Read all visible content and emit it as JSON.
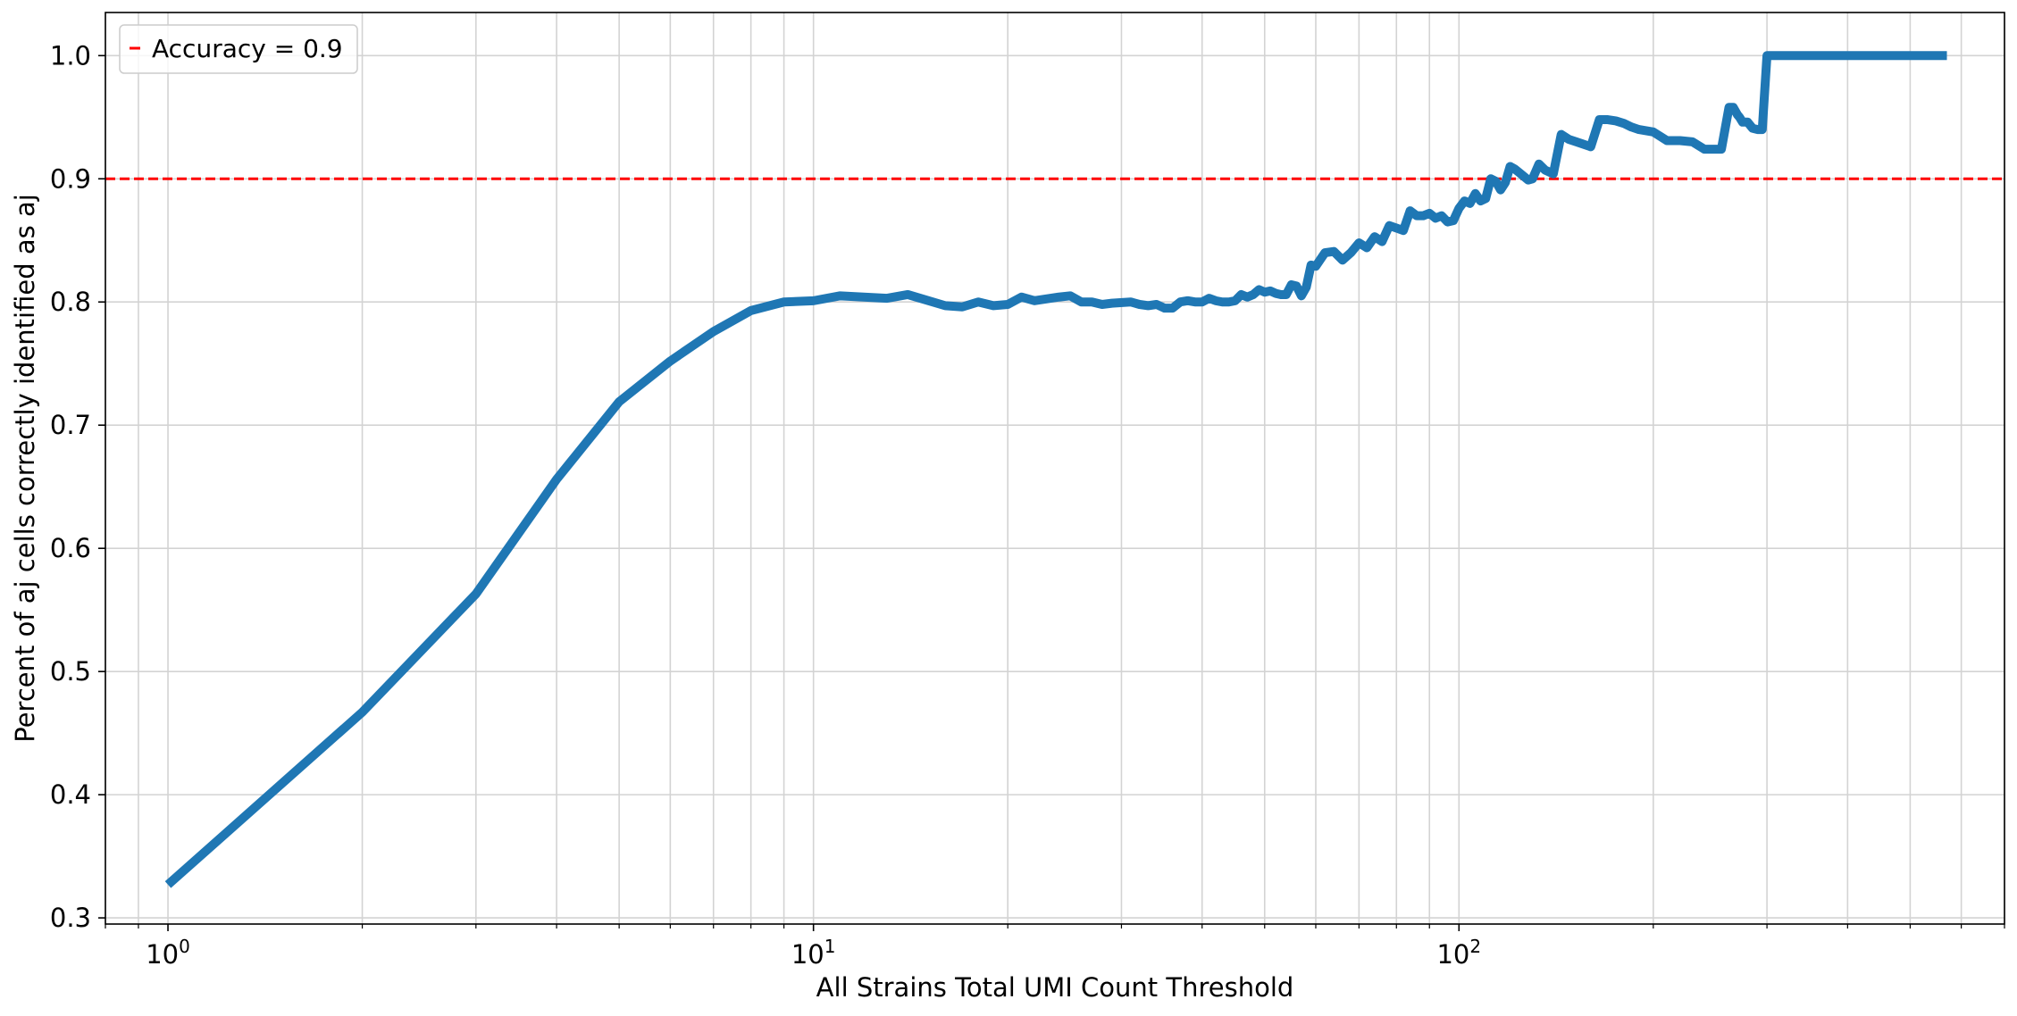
{
  "chart_data": {
    "type": "line",
    "title": "",
    "xlabel": "All Strains Total UMI Count Threshold",
    "ylabel": "Percent of aj cells correctly identified as aj",
    "xscale": "log",
    "xlim": [
      0.8,
      700
    ],
    "ylim": [
      0.295,
      1.035
    ],
    "grid": true,
    "legend_position": "top-left",
    "x_tick_labels": [
      {
        "base": "10",
        "exp": "0"
      },
      {
        "base": "10",
        "exp": "1"
      },
      {
        "base": "10",
        "exp": "2"
      }
    ],
    "x_major_ticks": [
      1,
      10,
      100
    ],
    "x_minor_ticks": [
      0.8,
      0.9,
      2,
      3,
      4,
      5,
      6,
      7,
      8,
      9,
      20,
      30,
      40,
      50,
      60,
      70,
      80,
      90,
      200,
      300,
      400,
      500,
      600,
      700
    ],
    "y_ticks": [
      0.3,
      0.4,
      0.5,
      0.6,
      0.7,
      0.8,
      0.9,
      1.0
    ],
    "y_tick_labels": [
      "0.3",
      "0.4",
      "0.5",
      "0.6",
      "0.7",
      "0.8",
      "0.9",
      "1.0"
    ],
    "reference_line": {
      "y": 0.9,
      "label": "Accuracy = 0.9",
      "color": "#ff0000"
    },
    "series": [
      {
        "color": "#1f77b4",
        "x": [
          1,
          2,
          3,
          4,
          5,
          6,
          7,
          8,
          9,
          10,
          11,
          13,
          14,
          16,
          17,
          18,
          19,
          20,
          21,
          22,
          24,
          25,
          26,
          27,
          28,
          29,
          31,
          32,
          33,
          34,
          35,
          36,
          37,
          38,
          39,
          40,
          41,
          42,
          43,
          44,
          45,
          46,
          47,
          48,
          49,
          50,
          51,
          52,
          53,
          54,
          55,
          56,
          57,
          58,
          59,
          60,
          62,
          64,
          66,
          68,
          70,
          72,
          74,
          76,
          78,
          80,
          82,
          84,
          86,
          88,
          90,
          92,
          94,
          96,
          98,
          100,
          102,
          104,
          106,
          108,
          110,
          112,
          114,
          116,
          118,
          120,
          122,
          124,
          126,
          128,
          130,
          133,
          136,
          140,
          144,
          148,
          152,
          156,
          160,
          165,
          170,
          175,
          180,
          185,
          190,
          200,
          210,
          220,
          230,
          240,
          255,
          262,
          266,
          270,
          272,
          275,
          280,
          285,
          290,
          295,
          300,
          302,
          305,
          310,
          400,
          500,
          570
        ],
        "y": [
          0.327,
          0.467,
          0.563,
          0.656,
          0.719,
          0.752,
          0.776,
          0.793,
          0.8,
          0.801,
          0.805,
          0.803,
          0.806,
          0.797,
          0.796,
          0.8,
          0.797,
          0.798,
          0.804,
          0.801,
          0.804,
          0.805,
          0.8,
          0.8,
          0.798,
          0.799,
          0.8,
          0.798,
          0.797,
          0.798,
          0.795,
          0.795,
          0.8,
          0.801,
          0.8,
          0.8,
          0.803,
          0.801,
          0.8,
          0.8,
          0.801,
          0.806,
          0.804,
          0.806,
          0.81,
          0.808,
          0.809,
          0.807,
          0.806,
          0.806,
          0.814,
          0.813,
          0.805,
          0.812,
          0.83,
          0.829,
          0.84,
          0.841,
          0.834,
          0.84,
          0.848,
          0.844,
          0.853,
          0.849,
          0.862,
          0.86,
          0.858,
          0.874,
          0.87,
          0.87,
          0.872,
          0.868,
          0.87,
          0.865,
          0.866,
          0.876,
          0.882,
          0.88,
          0.888,
          0.882,
          0.884,
          0.9,
          0.898,
          0.891,
          0.897,
          0.91,
          0.908,
          0.905,
          0.902,
          0.899,
          0.9,
          0.912,
          0.907,
          0.904,
          0.936,
          0.932,
          0.93,
          0.928,
          0.926,
          0.948,
          0.948,
          0.947,
          0.945,
          0.942,
          0.94,
          0.938,
          0.931,
          0.931,
          0.93,
          0.924,
          0.924,
          0.958,
          0.958,
          0.952,
          0.95,
          0.946,
          0.946,
          0.941,
          0.94,
          0.94,
          1.0,
          1.0,
          1.0,
          1.0,
          1.0,
          1.0,
          1.0
        ]
      }
    ]
  }
}
